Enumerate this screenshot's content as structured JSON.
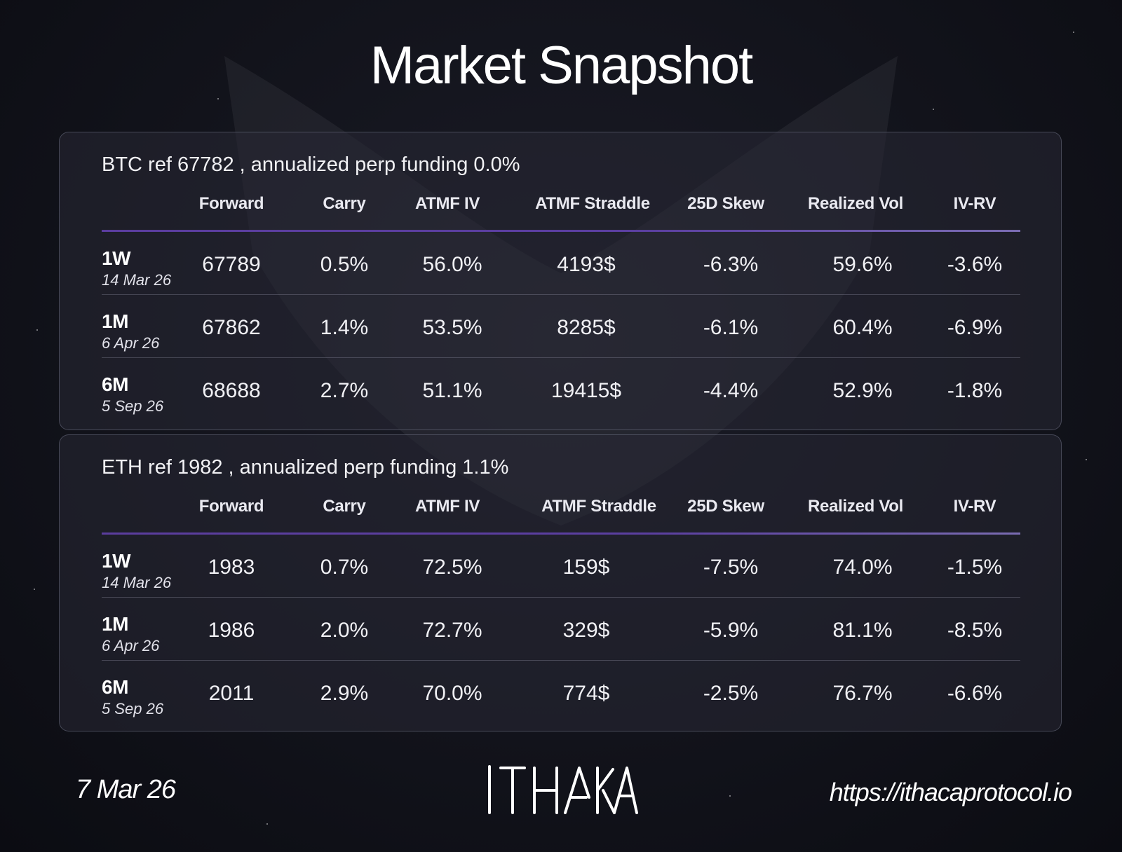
{
  "title": "Market Snapshot",
  "columns": [
    "Forward",
    "Carry",
    "ATMF IV",
    "ATMF Straddle",
    "25D Skew",
    "Realized Vol",
    "IV-RV"
  ],
  "panels": {
    "btc": {
      "heading": "BTC ref 67782 , annualized perp funding 0.0%",
      "rows": [
        {
          "tenor": "1W",
          "date": "14 Mar 26",
          "values": [
            "67789",
            "0.5%",
            "56.0%",
            "4193$",
            "-6.3%",
            "59.6%",
            "-3.6%"
          ]
        },
        {
          "tenor": "1M",
          "date": "6 Apr 26",
          "values": [
            "67862",
            "1.4%",
            "53.5%",
            "8285$",
            "-6.1%",
            "60.4%",
            "-6.9%"
          ]
        },
        {
          "tenor": "6M",
          "date": "5 Sep 26",
          "values": [
            "68688",
            "2.7%",
            "51.1%",
            "19415$",
            "-4.4%",
            "52.9%",
            "-1.8%"
          ]
        }
      ]
    },
    "eth": {
      "heading": "ETH ref 1982 , annualized perp funding 1.1%",
      "rows": [
        {
          "tenor": "1W",
          "date": "14 Mar 26",
          "values": [
            "1983",
            "0.7%",
            "72.5%",
            "159$",
            "-7.5%",
            "74.0%",
            "-1.5%"
          ]
        },
        {
          "tenor": "1M",
          "date": "6 Apr 26",
          "values": [
            "1986",
            "2.0%",
            "72.7%",
            "329$",
            "-5.9%",
            "81.1%",
            "-8.5%"
          ]
        },
        {
          "tenor": "6M",
          "date": "5 Sep 26",
          "values": [
            "2011",
            "2.9%",
            "70.0%",
            "774$",
            "-2.5%",
            "76.7%",
            "-6.6%"
          ]
        }
      ]
    }
  },
  "footer": {
    "date": "7 Mar 26",
    "logo_text": "ITHACA",
    "url": "https://ithacaprotocol.io"
  }
}
